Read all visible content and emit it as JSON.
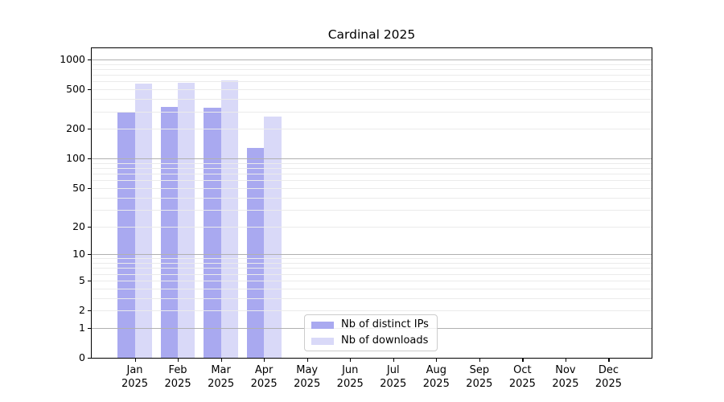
{
  "title": "Cardinal 2025",
  "chart_data": {
    "type": "bar",
    "title": "Cardinal 2025",
    "categories": [
      "Jan",
      "Feb",
      "Mar",
      "Apr",
      "May",
      "Jun",
      "Jul",
      "Aug",
      "Sep",
      "Oct",
      "Nov",
      "Dec"
    ],
    "x_year": "2025",
    "series": [
      {
        "name": "Nb of distinct IPs",
        "color": "#a9a9f0",
        "values": [
          295,
          334,
          324,
          128,
          0,
          0,
          0,
          0,
          0,
          0,
          0,
          0
        ]
      },
      {
        "name": "Nb of downloads",
        "color": "#d9d9f8",
        "values": [
          574,
          586,
          616,
          265,
          0,
          0,
          0,
          0,
          0,
          0,
          0,
          0
        ]
      }
    ],
    "y_ticks": [
      1000,
      500,
      200,
      100,
      50,
      20,
      10,
      5,
      2,
      1,
      0
    ],
    "y_scale": "log10(1+v)",
    "y_max": 1300,
    "ylim": [
      0,
      1300
    ],
    "grid": true,
    "major_grid_values": [
      1,
      10,
      100,
      1000
    ],
    "legend_position": "lower center",
    "xlabel": "",
    "ylabel": ""
  },
  "colors": {
    "background": "#ffffff",
    "axis": "#000000",
    "major_grid": "#b0b0b0",
    "minor_grid": "#ebebeb"
  }
}
